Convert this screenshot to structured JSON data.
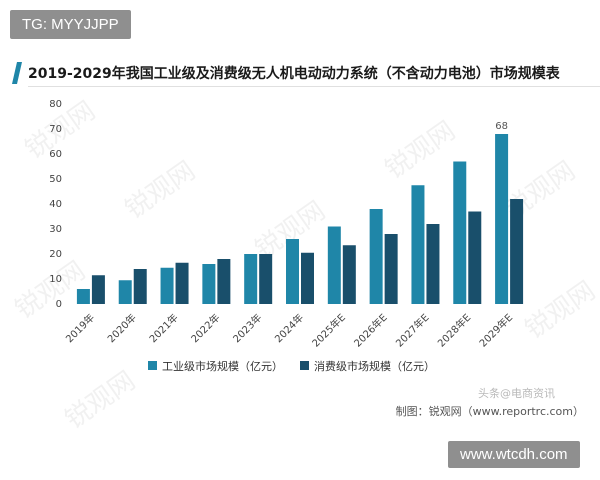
{
  "header": {
    "tag": "TG: MYYJJPP"
  },
  "chart_data": {
    "type": "bar",
    "title": "2019-2029年我国工业级及消费级无人机电动动力系统（不含动力电池）市场规模表",
    "xlabel": "",
    "ylabel": "",
    "categories": [
      "2019年",
      "2020年",
      "2021年",
      "2022年",
      "2023年",
      "2024年",
      "2025年E",
      "2026年E",
      "2027年E",
      "2028年E",
      "2029年E"
    ],
    "ylim": [
      0,
      80
    ],
    "yticks": [
      0,
      10,
      20,
      30,
      40,
      50,
      60,
      70,
      80
    ],
    "grid": false,
    "legend_position": "bottom",
    "series": [
      {
        "name": "工业级市场规模（亿元）",
        "color": "#1f86a8",
        "values": [
          6,
          9.5,
          14.5,
          16,
          20,
          26,
          31,
          38,
          47.5,
          57,
          68
        ]
      },
      {
        "name": "消费级市场规模（亿元）",
        "color": "#194f6b",
        "values": [
          11.5,
          14,
          16.5,
          18,
          20,
          20.5,
          23.5,
          28,
          32,
          37,
          42
        ]
      }
    ],
    "data_labels": [
      {
        "series": 0,
        "index": 10,
        "text": "68"
      }
    ]
  },
  "footer": {
    "source": "制图：锐观网（www.reportrc.com）",
    "watermark": "头条@电商资讯",
    "site": "www.wtcdh.com"
  }
}
